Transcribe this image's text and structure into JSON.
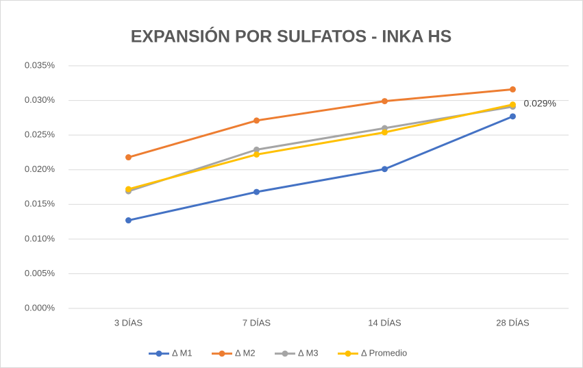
{
  "chart_data": {
    "type": "line",
    "title": "EXPANSIÓN POR SULFATOS - INKA HS",
    "categories": [
      "3 DÍAS",
      "7 DÍAS",
      "14 DÍAS",
      "28 DÍAS"
    ],
    "series": [
      {
        "name": "Δ M1",
        "color": "#4472c4",
        "values": [
          0.0127,
          0.0168,
          0.0201,
          0.0277
        ]
      },
      {
        "name": "Δ M2",
        "color": "#ed7d31",
        "values": [
          0.0218,
          0.0271,
          0.0299,
          0.0316
        ]
      },
      {
        "name": "Δ M3",
        "color": "#a5a5a5",
        "values": [
          0.0169,
          0.0229,
          0.026,
          0.0291
        ]
      },
      {
        "name": "Δ Promedio",
        "color": "#ffc000",
        "values": [
          0.0172,
          0.0222,
          0.0254,
          0.0294
        ],
        "value_labels": [
          null,
          null,
          null,
          "0.029%"
        ]
      }
    ],
    "ylim": [
      0,
      0.035
    ],
    "yticks": [
      {
        "value": 0,
        "label": "0.000%"
      },
      {
        "value": 0.005,
        "label": "0.005%"
      },
      {
        "value": 0.01,
        "label": "0.010%"
      },
      {
        "value": 0.015,
        "label": "0.015%"
      },
      {
        "value": 0.02,
        "label": "0.020%"
      },
      {
        "value": 0.025,
        "label": "0.025%"
      },
      {
        "value": 0.03,
        "label": "0.030%"
      },
      {
        "value": 0.035,
        "label": "0.035%"
      }
    ],
    "grid": true,
    "legend": "bottom"
  }
}
